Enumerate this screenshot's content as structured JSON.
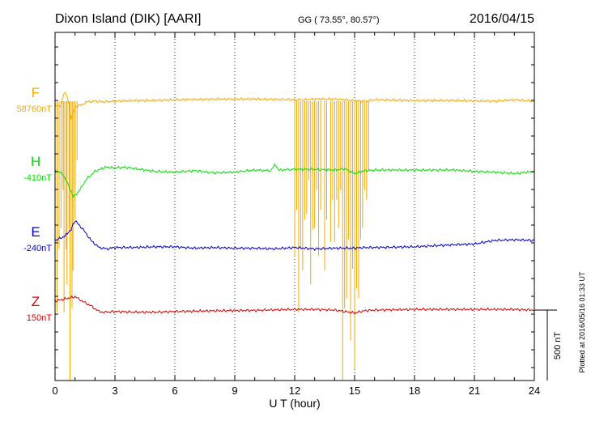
{
  "header": {
    "station": "Dixon Island (DIK)  [AARI]",
    "coords": "GG ( 73.55°,  80.57°)",
    "date": "2016/04/15"
  },
  "plotted_note": "Plotted at 2016/05/16 01:33 UT",
  "scale_label": "500 nT",
  "colors": {
    "F": "#f5a800",
    "H": "#00e000",
    "E": "#0000c8",
    "Z": "#e00000",
    "axis": "#000000",
    "grid": "#000000"
  },
  "chart_data": {
    "type": "line",
    "title": "Dixon Island (DIK)  [AARI]",
    "xlabel": "U T (hour)",
    "xlim": [
      0,
      24
    ],
    "xticks": [
      0,
      3,
      6,
      9,
      12,
      15,
      18,
      21,
      24
    ],
    "xtick_labels": [
      "0",
      "3",
      "6",
      "9",
      "12",
      "15",
      "18",
      "21",
      "24"
    ],
    "grid": true,
    "scale_bar_nT": 500,
    "series": [
      {
        "key": "F",
        "name": "F",
        "baseline_label": "58760nT",
        "baseline_nT": 58760,
        "points": [
          [
            0,
            -30
          ],
          [
            0.15,
            -35
          ],
          [
            0.3,
            -30
          ],
          [
            0.45,
            60
          ],
          [
            0.6,
            45
          ],
          [
            0.8,
            -120
          ],
          [
            1.0,
            -45
          ],
          [
            1.3,
            -25
          ],
          [
            1.6,
            -5
          ],
          [
            2.0,
            0
          ],
          [
            2.5,
            -5
          ],
          [
            3,
            0
          ],
          [
            4,
            5
          ],
          [
            5,
            5
          ],
          [
            6,
            10
          ],
          [
            8,
            15
          ],
          [
            10,
            15
          ],
          [
            11.5,
            12
          ],
          [
            12.5,
            10
          ],
          [
            13,
            15
          ],
          [
            14,
            15
          ],
          [
            14.5,
            10
          ],
          [
            15,
            5
          ],
          [
            15.5,
            0
          ],
          [
            16,
            10
          ],
          [
            18,
            5
          ],
          [
            20,
            5
          ],
          [
            22,
            0
          ],
          [
            23,
            10
          ],
          [
            24,
            0
          ]
        ],
        "spikes": [
          [
            0.1,
            -1500
          ],
          [
            0.3,
            -900
          ],
          [
            0.45,
            -1500
          ],
          [
            0.6,
            -1300
          ],
          [
            0.75,
            -2100
          ],
          [
            0.9,
            -1200
          ],
          [
            1.0,
            -600
          ],
          [
            12.0,
            -1100
          ],
          [
            12.2,
            -1500
          ],
          [
            12.4,
            -1200
          ],
          [
            12.6,
            -800
          ],
          [
            12.8,
            -1300
          ],
          [
            13.0,
            -900
          ],
          [
            13.2,
            -1100
          ],
          [
            13.5,
            -1200
          ],
          [
            13.8,
            -1000
          ],
          [
            14.0,
            -1000
          ],
          [
            14.2,
            -900
          ],
          [
            14.4,
            -2100
          ],
          [
            14.6,
            -1400
          ],
          [
            14.8,
            -1700
          ],
          [
            15.0,
            -1900
          ],
          [
            15.2,
            -1400
          ],
          [
            15.4,
            -900
          ],
          [
            15.6,
            -700
          ]
        ]
      },
      {
        "key": "H",
        "name": "H",
        "baseline_label": "-410nT",
        "baseline_nT": -410,
        "points": [
          [
            0,
            0
          ],
          [
            0.3,
            -20
          ],
          [
            0.6,
            -80
          ],
          [
            0.9,
            -190
          ],
          [
            1.2,
            -150
          ],
          [
            1.6,
            -60
          ],
          [
            2.0,
            -10
          ],
          [
            2.5,
            20
          ],
          [
            3,
            15
          ],
          [
            3.5,
            20
          ],
          [
            4,
            10
          ],
          [
            5,
            -10
          ],
          [
            6,
            -15
          ],
          [
            7,
            -5
          ],
          [
            8,
            -20
          ],
          [
            9,
            -15
          ],
          [
            10,
            0
          ],
          [
            10.8,
            -5
          ],
          [
            11,
            40
          ],
          [
            11.2,
            0
          ],
          [
            12,
            5
          ],
          [
            13,
            5
          ],
          [
            14,
            0
          ],
          [
            14.5,
            10
          ],
          [
            15,
            -25
          ],
          [
            15.5,
            -5
          ],
          [
            16,
            0
          ],
          [
            18,
            0
          ],
          [
            20,
            0
          ],
          [
            21,
            -10
          ],
          [
            22,
            -15
          ],
          [
            23,
            -25
          ],
          [
            24,
            -10
          ]
        ]
      },
      {
        "key": "E",
        "name": "E",
        "baseline_label": "-240nT",
        "baseline_nT": -240,
        "points": [
          [
            0,
            0
          ],
          [
            0.5,
            30
          ],
          [
            0.8,
            80
          ],
          [
            1.0,
            140
          ],
          [
            1.4,
            80
          ],
          [
            1.8,
            0
          ],
          [
            2.2,
            -50
          ],
          [
            2.6,
            -60
          ],
          [
            3,
            -50
          ],
          [
            4,
            -50
          ],
          [
            5,
            -45
          ],
          [
            6,
            -45
          ],
          [
            7,
            -55
          ],
          [
            8,
            -50
          ],
          [
            9,
            -55
          ],
          [
            10,
            -55
          ],
          [
            11,
            -60
          ],
          [
            11.5,
            -55
          ],
          [
            12,
            -50
          ],
          [
            13,
            -60
          ],
          [
            14,
            -55
          ],
          [
            15,
            -55
          ],
          [
            15.5,
            -50
          ],
          [
            16,
            -50
          ],
          [
            18,
            -45
          ],
          [
            20,
            -30
          ],
          [
            21,
            -25
          ],
          [
            22,
            0
          ],
          [
            23,
            5
          ],
          [
            24,
            0
          ]
        ]
      },
      {
        "key": "Z",
        "name": "Z",
        "baseline_label": "150nT",
        "baseline_nT": 150,
        "points": [
          [
            0,
            65
          ],
          [
            0.5,
            80
          ],
          [
            1.0,
            95
          ],
          [
            1.4,
            60
          ],
          [
            1.8,
            30
          ],
          [
            2.2,
            -10
          ],
          [
            2.5,
            -15
          ],
          [
            3,
            -10
          ],
          [
            4,
            -15
          ],
          [
            5,
            -15
          ],
          [
            6,
            -10
          ],
          [
            8,
            -5
          ],
          [
            10,
            -2
          ],
          [
            12,
            5
          ],
          [
            13,
            5
          ],
          [
            14,
            0
          ],
          [
            15,
            -20
          ],
          [
            15.5,
            -5
          ],
          [
            16,
            0
          ],
          [
            18,
            5
          ],
          [
            20,
            5
          ],
          [
            22,
            5
          ],
          [
            23,
            5
          ],
          [
            24,
            0
          ]
        ]
      }
    ]
  }
}
